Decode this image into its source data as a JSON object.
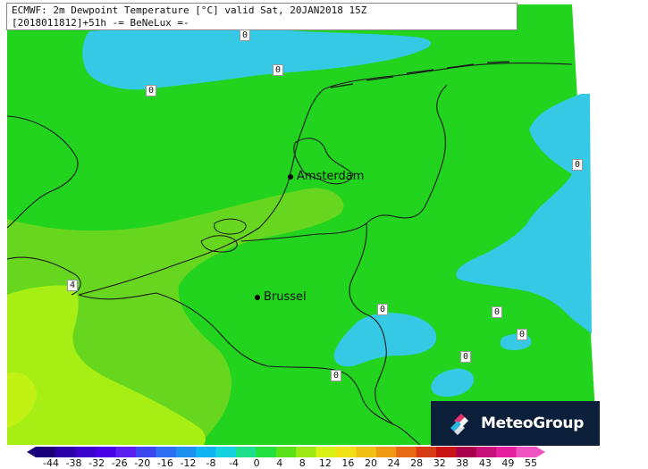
{
  "header": {
    "line1": "ECMWF: 2m Dewpoint Temperature [°C] valid Sat, 20JAN2018 15Z",
    "line2": "[2018011812]+51h -= BeNeLux =-"
  },
  "cities": [
    {
      "name": "Amsterdam"
    },
    {
      "name": "Brussel"
    }
  ],
  "contour_labels": [
    "0",
    "0",
    "0",
    "0",
    "4",
    "0",
    "0",
    "0",
    "0",
    "0"
  ],
  "brand": {
    "name": "MeteoGroup",
    "bg": "#0c1f3a"
  },
  "colors": {
    "sea_zero": "#36c9e6",
    "land_above_zero": "#22d41e",
    "warm_green": "#66d61e",
    "yellow_green": "#a6ee14",
    "border": "#1a1a1a"
  },
  "scale": {
    "labels": [
      "-44",
      "-38",
      "-32",
      "-26",
      "-20",
      "-16",
      "-12",
      "-8",
      "-4",
      "0",
      "4",
      "8",
      "12",
      "16",
      "20",
      "24",
      "28",
      "32",
      "38",
      "43",
      "49",
      "55"
    ],
    "colors": [
      "#1a007a",
      "#2b00a8",
      "#3a00cc",
      "#4a00e6",
      "#5a1ef0",
      "#3c46f0",
      "#2e6ef0",
      "#1e90f0",
      "#10b4f0",
      "#15d2e0",
      "#1ee08c",
      "#24e03c",
      "#5ae018",
      "#9ee814",
      "#d8f014",
      "#f0e014",
      "#f0c014",
      "#f09a14",
      "#e86a14",
      "#d83c14",
      "#c81414",
      "#a8004a",
      "#c8107a",
      "#e6209e",
      "#f054c0"
    ]
  }
}
